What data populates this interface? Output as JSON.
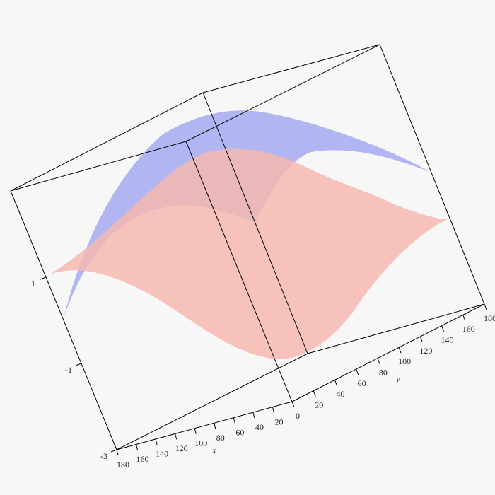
{
  "chart_data": {
    "type": "surface3d",
    "x_label": "x",
    "y_label": "y",
    "xlim": [
      0,
      180
    ],
    "xticks": [
      20,
      40,
      60,
      80,
      100,
      120,
      140,
      160,
      180
    ],
    "ylim": [
      0,
      180
    ],
    "yticks": [
      0,
      20,
      40,
      60,
      80,
      100,
      120,
      140,
      160,
      180
    ],
    "zlim": [
      -3,
      3
    ],
    "zticks": [
      -3,
      -1,
      1
    ],
    "series": [
      {
        "name": null,
        "color": "#f6b8b0"
      },
      {
        "name": null,
        "color": "#9aa0f0"
      }
    ]
  }
}
